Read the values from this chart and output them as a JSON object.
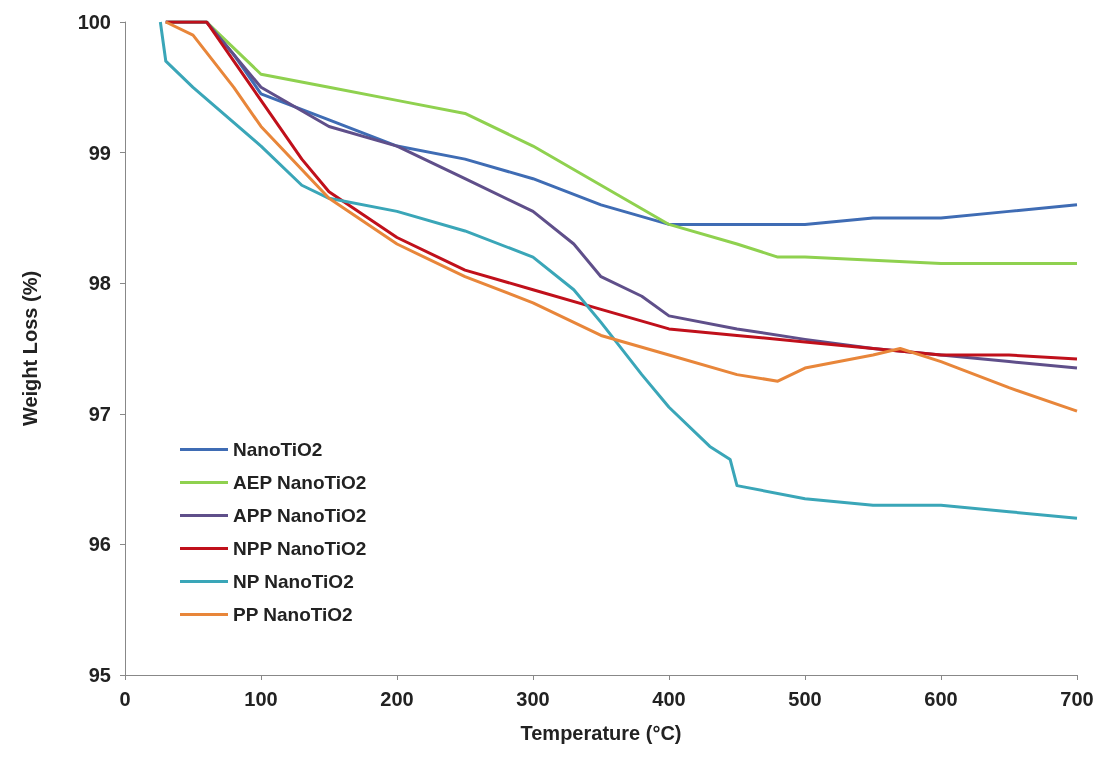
{
  "chart_data": {
    "type": "line",
    "xlabel": "Temperature (°C)",
    "ylabel": "Weight Loss (%)",
    "xlim": [
      0,
      700
    ],
    "xticks": [
      0,
      100,
      200,
      300,
      400,
      500,
      600,
      700
    ],
    "ylim": [
      95,
      100
    ],
    "yticks": [
      95,
      96,
      97,
      98,
      99,
      100
    ],
    "grid": false,
    "legend": "bottom left",
    "marker": "none",
    "line_style": "solid",
    "series": [
      {
        "name": "NanoTiO2",
        "color": "#3f6cb4",
        "x": [
          30,
          60,
          80,
          100,
          150,
          200,
          250,
          300,
          350,
          400,
          450,
          500,
          550,
          600,
          650,
          700
        ],
        "values": [
          100,
          100,
          99.75,
          99.45,
          99.25,
          99.05,
          98.95,
          98.8,
          98.6,
          98.45,
          98.45,
          98.45,
          98.5,
          98.5,
          98.55,
          98.6
        ]
      },
      {
        "name": "AEP NanoTiO2",
        "color": "#8fd14f",
        "x": [
          30,
          60,
          80,
          100,
          150,
          200,
          250,
          300,
          350,
          400,
          450,
          480,
          500,
          600,
          700
        ],
        "values": [
          100,
          100,
          99.8,
          99.6,
          99.5,
          99.4,
          99.3,
          99.05,
          98.75,
          98.45,
          98.3,
          98.2,
          98.2,
          98.15,
          98.15
        ]
      },
      {
        "name": "APP NanoTiO2",
        "color": "#5f4f8a",
        "x": [
          30,
          60,
          100,
          150,
          200,
          250,
          300,
          330,
          350,
          380,
          400,
          450,
          500,
          550,
          600,
          650,
          700
        ],
        "values": [
          100,
          100,
          99.5,
          99.2,
          99.05,
          98.8,
          98.55,
          98.3,
          98.05,
          97.9,
          97.75,
          97.65,
          97.57,
          97.5,
          97.45,
          97.4,
          97.35
        ]
      },
      {
        "name": "NPP NanoTiO2",
        "color": "#c0101b",
        "x": [
          30,
          60,
          80,
          100,
          130,
          150,
          200,
          250,
          300,
          350,
          400,
          450,
          500,
          550,
          600,
          650,
          700
        ],
        "values": [
          100,
          100,
          99.7,
          99.4,
          98.95,
          98.7,
          98.35,
          98.1,
          97.95,
          97.8,
          97.65,
          97.6,
          97.55,
          97.5,
          97.45,
          97.45,
          97.42
        ]
      },
      {
        "name": "NP NanoTiO2",
        "color": "#3aa6b8",
        "x": [
          26,
          30,
          50,
          100,
          130,
          150,
          200,
          250,
          300,
          330,
          350,
          380,
          400,
          430,
          445,
          450,
          500,
          550,
          600,
          650,
          700
        ],
        "values": [
          100,
          99.7,
          99.5,
          99.05,
          98.75,
          98.65,
          98.55,
          98.4,
          98.2,
          97.95,
          97.7,
          97.3,
          97.05,
          96.75,
          96.65,
          96.45,
          96.35,
          96.3,
          96.3,
          96.25,
          96.2
        ]
      },
      {
        "name": "PP NanoTiO2",
        "color": "#e8863a",
        "x": [
          30,
          50,
          80,
          100,
          150,
          200,
          250,
          300,
          350,
          400,
          450,
          480,
          500,
          550,
          570,
          600,
          650,
          700
        ],
        "values": [
          100,
          99.9,
          99.5,
          99.2,
          98.65,
          98.3,
          98.05,
          97.85,
          97.6,
          97.45,
          97.3,
          97.25,
          97.35,
          97.45,
          97.5,
          97.4,
          97.2,
          97.02
        ]
      }
    ]
  }
}
